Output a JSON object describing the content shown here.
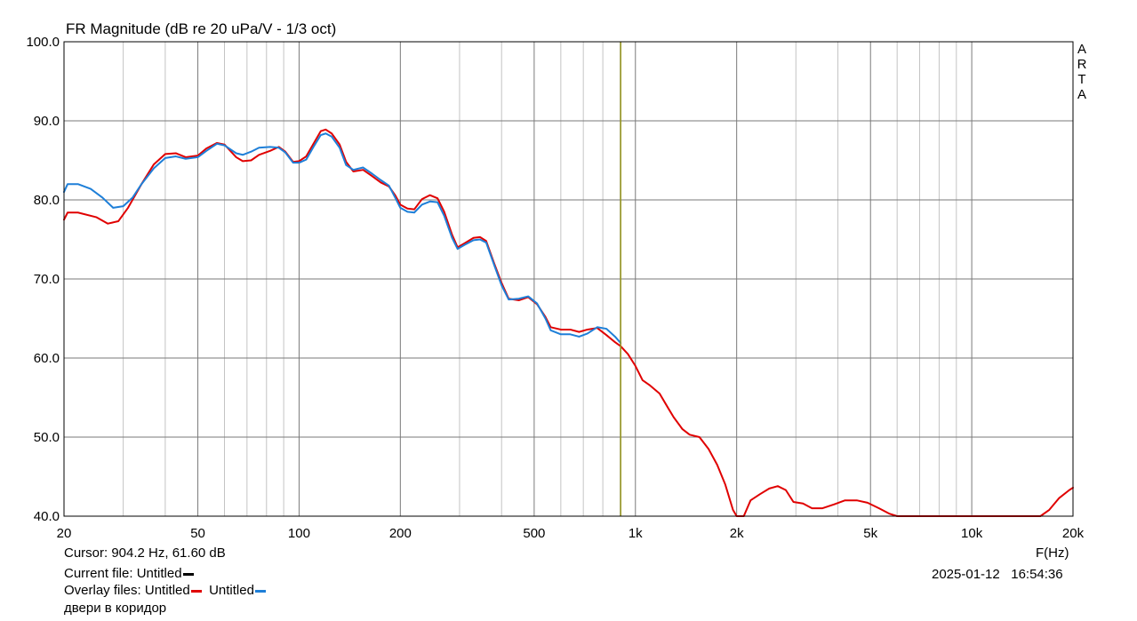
{
  "chart_data": {
    "type": "line",
    "title": "FR Magnitude (dB re 20 uPa/V - 1/3 oct)",
    "xlabel": "F(Hz)",
    "ylabel": "",
    "x_scale": "log",
    "xlim": [
      20,
      20000
    ],
    "ylim": [
      40,
      100
    ],
    "y_ticks": [
      "100.0",
      "90.0",
      "80.0",
      "70.0",
      "60.0",
      "50.0",
      "40.0"
    ],
    "y_tick_values": [
      100,
      90,
      80,
      70,
      60,
      50,
      40
    ],
    "x_ticks": [
      "20",
      "50",
      "100",
      "200",
      "500",
      "1k",
      "2k",
      "5k",
      "10k",
      "20k"
    ],
    "x_tick_values": [
      20,
      50,
      100,
      200,
      500,
      1000,
      2000,
      5000,
      10000,
      20000
    ],
    "grid": true,
    "cursor_x": 904.2,
    "cursor_color": "#9a9a20",
    "series": [
      {
        "color": "#e00000",
        "points": [
          [
            20,
            77.5
          ],
          [
            20.5,
            78.4
          ],
          [
            22,
            78.4
          ],
          [
            25,
            77.8
          ],
          [
            27,
            77.0
          ],
          [
            29,
            77.3
          ],
          [
            31,
            79.0
          ],
          [
            34,
            82.0
          ],
          [
            37,
            84.5
          ],
          [
            40,
            85.8
          ],
          [
            43,
            85.9
          ],
          [
            46,
            85.4
          ],
          [
            50,
            85.6
          ],
          [
            53,
            86.5
          ],
          [
            57,
            87.2
          ],
          [
            60,
            87.0
          ],
          [
            65,
            85.4
          ],
          [
            68,
            84.9
          ],
          [
            72,
            85.0
          ],
          [
            76,
            85.7
          ],
          [
            82,
            86.2
          ],
          [
            87,
            86.7
          ],
          [
            91,
            86.1
          ],
          [
            96,
            84.8
          ],
          [
            100,
            84.9
          ],
          [
            105,
            85.5
          ],
          [
            110,
            87.0
          ],
          [
            116,
            88.7
          ],
          [
            120,
            88.9
          ],
          [
            125,
            88.4
          ],
          [
            132,
            87.0
          ],
          [
            138,
            84.8
          ],
          [
            145,
            83.6
          ],
          [
            155,
            83.8
          ],
          [
            165,
            83.0
          ],
          [
            175,
            82.2
          ],
          [
            185,
            81.7
          ],
          [
            193,
            80.6
          ],
          [
            200,
            79.4
          ],
          [
            210,
            78.9
          ],
          [
            220,
            78.8
          ],
          [
            232,
            80.1
          ],
          [
            245,
            80.6
          ],
          [
            258,
            80.2
          ],
          [
            270,
            78.5
          ],
          [
            285,
            75.6
          ],
          [
            296,
            74.0
          ],
          [
            310,
            74.5
          ],
          [
            330,
            75.2
          ],
          [
            345,
            75.3
          ],
          [
            360,
            74.8
          ],
          [
            380,
            72.0
          ],
          [
            400,
            69.5
          ],
          [
            420,
            67.5
          ],
          [
            450,
            67.3
          ],
          [
            480,
            67.7
          ],
          [
            510,
            66.8
          ],
          [
            540,
            65.2
          ],
          [
            560,
            63.9
          ],
          [
            600,
            63.6
          ],
          [
            640,
            63.6
          ],
          [
            680,
            63.3
          ],
          [
            720,
            63.6
          ],
          [
            770,
            63.8
          ],
          [
            820,
            62.9
          ],
          [
            870,
            62.0
          ],
          [
            904,
            61.5
          ],
          [
            950,
            60.5
          ],
          [
            1000,
            59.0
          ],
          [
            1050,
            57.2
          ],
          [
            1100,
            56.6
          ],
          [
            1180,
            55.5
          ],
          [
            1250,
            53.7
          ],
          [
            1300,
            52.5
          ],
          [
            1380,
            51.0
          ],
          [
            1450,
            50.3
          ],
          [
            1550,
            50.0
          ],
          [
            1650,
            48.5
          ],
          [
            1750,
            46.5
          ],
          [
            1850,
            44.0
          ],
          [
            1950,
            40.8
          ],
          [
            2000,
            40.0
          ],
          [
            2100,
            40.0
          ],
          [
            2200,
            42.0
          ],
          [
            2350,
            42.8
          ],
          [
            2500,
            43.5
          ],
          [
            2650,
            43.8
          ],
          [
            2800,
            43.3
          ],
          [
            2950,
            41.8
          ],
          [
            3150,
            41.6
          ],
          [
            3350,
            41.0
          ],
          [
            3600,
            41.0
          ],
          [
            3900,
            41.5
          ],
          [
            4200,
            42.0
          ],
          [
            4550,
            42.0
          ],
          [
            4900,
            41.7
          ],
          [
            5300,
            41.0
          ],
          [
            5700,
            40.3
          ],
          [
            6000,
            40.0
          ],
          [
            16000,
            40.0
          ],
          [
            17000,
            40.8
          ],
          [
            18200,
            42.3
          ],
          [
            19500,
            43.3
          ],
          [
            20000,
            43.6
          ]
        ]
      },
      {
        "color": "#1e7fd8",
        "points": [
          [
            20,
            81.0
          ],
          [
            20.5,
            82.0
          ],
          [
            22,
            82.0
          ],
          [
            24,
            81.4
          ],
          [
            26,
            80.3
          ],
          [
            28,
            79.0
          ],
          [
            30,
            79.2
          ],
          [
            32,
            80.3
          ],
          [
            34,
            82.0
          ],
          [
            37,
            84.0
          ],
          [
            40,
            85.3
          ],
          [
            43,
            85.5
          ],
          [
            46,
            85.2
          ],
          [
            50,
            85.4
          ],
          [
            53,
            86.2
          ],
          [
            57,
            87.1
          ],
          [
            60,
            86.9
          ],
          [
            65,
            85.9
          ],
          [
            68,
            85.7
          ],
          [
            72,
            86.1
          ],
          [
            76,
            86.6
          ],
          [
            82,
            86.7
          ],
          [
            87,
            86.6
          ],
          [
            91,
            86.0
          ],
          [
            96,
            84.7
          ],
          [
            100,
            84.7
          ],
          [
            105,
            85.1
          ],
          [
            110,
            86.6
          ],
          [
            116,
            88.2
          ],
          [
            120,
            88.4
          ],
          [
            125,
            88.0
          ],
          [
            132,
            86.6
          ],
          [
            138,
            84.4
          ],
          [
            145,
            83.8
          ],
          [
            155,
            84.1
          ],
          [
            165,
            83.3
          ],
          [
            175,
            82.5
          ],
          [
            185,
            81.8
          ],
          [
            193,
            80.3
          ],
          [
            200,
            79.0
          ],
          [
            210,
            78.5
          ],
          [
            220,
            78.4
          ],
          [
            232,
            79.4
          ],
          [
            245,
            79.8
          ],
          [
            258,
            79.7
          ],
          [
            270,
            78.0
          ],
          [
            285,
            75.2
          ],
          [
            296,
            73.8
          ],
          [
            310,
            74.3
          ],
          [
            330,
            74.9
          ],
          [
            345,
            75.0
          ],
          [
            360,
            74.6
          ],
          [
            380,
            71.8
          ],
          [
            400,
            69.2
          ],
          [
            420,
            67.4
          ],
          [
            450,
            67.5
          ],
          [
            480,
            67.8
          ],
          [
            510,
            66.9
          ],
          [
            540,
            65.0
          ],
          [
            560,
            63.5
          ],
          [
            600,
            63.0
          ],
          [
            640,
            63.0
          ],
          [
            680,
            62.7
          ],
          [
            720,
            63.1
          ],
          [
            770,
            63.9
          ],
          [
            820,
            63.7
          ],
          [
            870,
            62.7
          ],
          [
            904,
            61.9
          ]
        ]
      }
    ]
  },
  "watermark": [
    "A",
    "R",
    "T",
    "A"
  ],
  "footer": {
    "cursor": "Cursor: 904.2 Hz, 61.60 dB",
    "current_file": "Current file: Untitled",
    "overlay_files": "Overlay files: Untitled",
    "overlay_second": "Untitled",
    "note": "двери в коридор",
    "datetime": "2025-01-12   16:54:36"
  }
}
